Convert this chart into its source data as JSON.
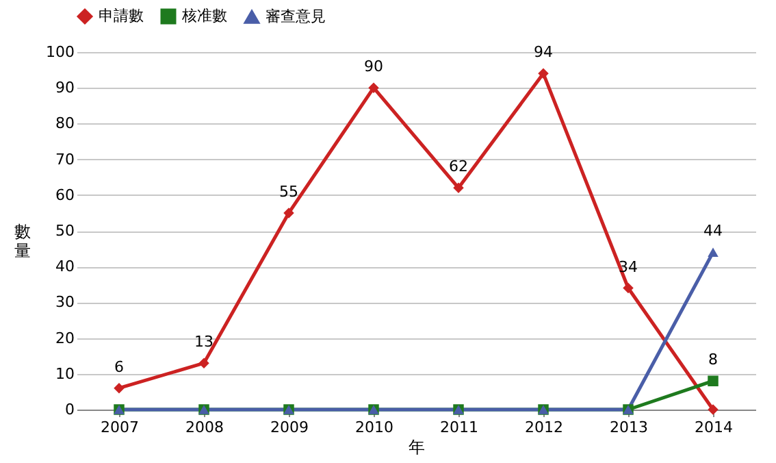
{
  "chart_data": {
    "type": "line",
    "xlabel": "年",
    "ylabel": "數量",
    "categories": [
      "2007",
      "2008",
      "2009",
      "2010",
      "2011",
      "2012",
      "2013",
      "2014"
    ],
    "series": [
      {
        "name": "申請數",
        "color": "#cc2222",
        "marker": "diamond",
        "values": [
          6,
          13,
          55,
          90,
          62,
          94,
          34,
          0
        ],
        "value_labels": [
          "6",
          "13",
          "55",
          "90",
          "62",
          "94",
          "34",
          null
        ]
      },
      {
        "name": "核准數",
        "color": "#1e7a1e",
        "marker": "square",
        "values": [
          0,
          0,
          0,
          0,
          0,
          0,
          0,
          8
        ],
        "value_labels": [
          null,
          null,
          null,
          null,
          null,
          null,
          null,
          "8"
        ]
      },
      {
        "name": "審查意見",
        "color": "#4a5ea8",
        "marker": "triangle",
        "values": [
          0,
          0,
          0,
          0,
          0,
          0,
          0,
          44
        ],
        "value_labels": [
          null,
          null,
          null,
          null,
          null,
          null,
          null,
          "44"
        ]
      }
    ],
    "ylim": [
      0,
      100
    ],
    "yticks": [
      0,
      10,
      20,
      30,
      40,
      50,
      60,
      70,
      80,
      90,
      100
    ],
    "grid": "y",
    "legend": "top",
    "line_style": "solid"
  }
}
